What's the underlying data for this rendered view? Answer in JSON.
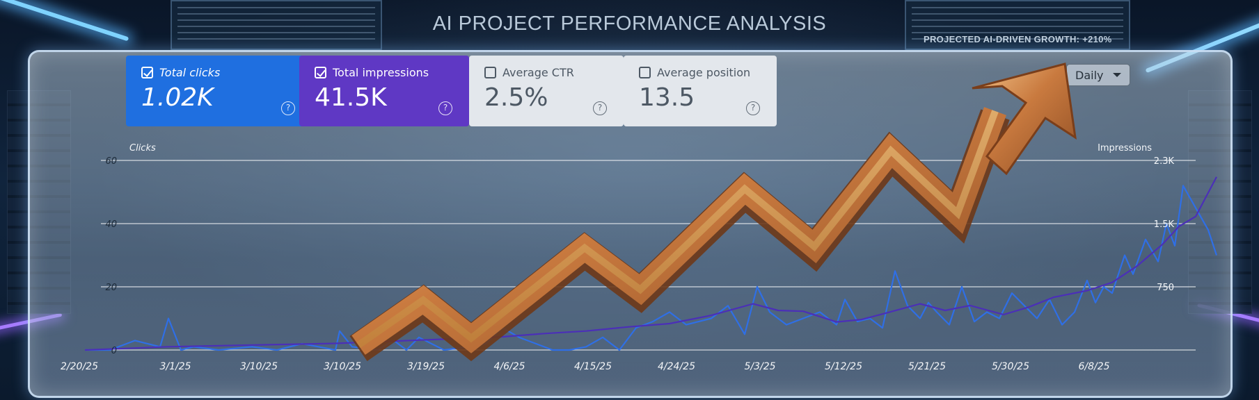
{
  "header": {
    "title": "AI PROJECT PERFORMANCE ANALYSIS",
    "growth_note": "PROJECTED AI-DRIVEN GROWTH: +210%"
  },
  "metrics": {
    "clicks": {
      "label": "Total clicks",
      "value": "1.02K",
      "checked": true,
      "color": "#1f6fe0"
    },
    "impressions": {
      "label": "Total impressions",
      "value": "41.5K",
      "checked": true,
      "color": "#5f38c4"
    },
    "ctr": {
      "label": "Average CTR",
      "value": "2.5%",
      "checked": false
    },
    "position": {
      "label": "Average position",
      "value": "13.5",
      "checked": false
    },
    "help_glyph": "?"
  },
  "period_select": {
    "selected": "Daily"
  },
  "chart_data": {
    "type": "line",
    "left_axis": {
      "title": "Clicks",
      "ticks": [
        "0",
        "20",
        "40",
        "60"
      ],
      "range": [
        0,
        60
      ]
    },
    "right_axis": {
      "title": "Impressions",
      "ticks": [
        "750",
        "1.5K",
        "2.3K"
      ],
      "range": [
        0,
        2300
      ]
    },
    "x_ticks": [
      "2/20/25",
      "3/1/25",
      "3/10/25",
      "3/10/25",
      "3/19/25",
      "4/6/25",
      "4/15/25",
      "4/24/25",
      "5/3/25",
      "5/12/25",
      "5/21/25",
      "5/30/25",
      "6/8/25"
    ],
    "grid": true,
    "series": [
      {
        "key": "clicks",
        "color": "#2f6fe6",
        "axis": "left",
        "x": [
          0,
          0.3,
          0.6,
          0.9,
          1.0,
          1.15,
          1.3,
          1.6,
          2.0,
          2.3,
          2.6,
          2.8,
          3.0,
          3.05,
          3.2,
          3.5,
          3.7,
          3.85,
          4.0,
          4.3,
          4.6,
          4.8,
          5.0,
          5.2,
          5.4,
          5.6,
          5.8,
          6.0,
          6.2,
          6.4,
          6.6,
          6.8,
          7.0,
          7.2,
          7.5,
          7.7,
          7.9,
          8.05,
          8.2,
          8.4,
          8.6,
          8.8,
          9.0,
          9.1,
          9.25,
          9.4,
          9.55,
          9.7,
          9.85,
          10.0,
          10.1,
          10.2,
          10.35,
          10.5,
          10.65,
          10.8,
          10.95,
          11.1,
          11.25,
          11.4,
          11.55,
          11.7,
          11.85,
          12.0,
          12.1,
          12.2
        ],
        "y": [
          0,
          0,
          3,
          1,
          10,
          0,
          1,
          0,
          1,
          0,
          2,
          1,
          0,
          6,
          1,
          0,
          3,
          0,
          4,
          0,
          1,
          2,
          7,
          4,
          2,
          0,
          0,
          1,
          4,
          0,
          7,
          9,
          12,
          8,
          10,
          14,
          5,
          20,
          12,
          8,
          10,
          12,
          8,
          16,
          9,
          10,
          7,
          25,
          14,
          10,
          15,
          12,
          8,
          20,
          9,
          12,
          10,
          18,
          14,
          10,
          16,
          8,
          12,
          22,
          15,
          20
        ],
        "lines": [
          {
            "x": [
              0,
              0.3,
              0.6,
              0.9,
              1.0,
              1.15,
              1.3,
              1.6,
              2.0,
              2.3,
              2.6,
              2.8,
              3.0,
              3.05,
              3.2,
              3.5,
              3.7,
              3.85,
              4.0,
              4.3,
              4.6,
              4.8,
              5.0,
              5.2,
              5.4,
              5.6,
              5.8,
              6.0,
              6.2,
              6.4,
              6.6,
              6.8,
              7.0,
              7.2,
              7.5,
              7.7,
              7.9,
              8.05,
              8.2,
              8.4,
              8.6,
              8.8,
              9.0,
              9.1,
              9.25,
              9.4,
              9.55,
              9.7,
              9.85,
              10.0,
              10.1,
              10.2,
              10.35,
              10.5,
              10.65,
              10.8,
              10.95,
              11.1,
              11.25,
              11.4,
              11.55,
              11.7,
              11.85,
              12.0,
              12.1,
              12.2,
              12.3,
              12.45,
              12.55,
              12.7,
              12.85,
              12.95,
              13.05,
              13.15,
              13.3,
              13.45,
              13.55
            ],
            "y": [
              0,
              0,
              3,
              1,
              10,
              0,
              1,
              0,
              1,
              0,
              2,
              1,
              0,
              6,
              1,
              0,
              3,
              0,
              4,
              0,
              1,
              2,
              7,
              4,
              2,
              0,
              0,
              1,
              4,
              0,
              7,
              9,
              12,
              8,
              10,
              14,
              5,
              20,
              12,
              8,
              10,
              12,
              8,
              16,
              9,
              10,
              7,
              25,
              14,
              10,
              15,
              12,
              8,
              20,
              9,
              12,
              10,
              18,
              14,
              10,
              16,
              8,
              12,
              22,
              15,
              20,
              18,
              30,
              24,
              35,
              28,
              40,
              33,
              52,
              45,
              38,
              30
            ]
          }
        ]
      },
      {
        "key": "impressions",
        "color": "#4b2fb8",
        "axis": "right",
        "x": [
          0,
          1.0,
          2.0,
          3.0,
          4.0,
          5.0,
          5.5,
          6.0,
          6.5,
          7.0,
          7.5,
          8.0,
          8.3,
          8.6,
          9.0,
          9.3,
          9.6,
          10.0,
          10.3,
          10.6,
          11.0,
          11.3,
          11.6,
          12.0,
          12.3,
          12.6,
          12.9,
          13.1,
          13.3,
          13.55
        ],
        "y": [
          0,
          40,
          60,
          80,
          120,
          160,
          200,
          230,
          280,
          320,
          420,
          560,
          480,
          470,
          340,
          370,
          450,
          560,
          480,
          540,
          430,
          520,
          640,
          720,
          820,
          1020,
          1280,
          1500,
          1620,
          2100
        ]
      }
    ]
  }
}
